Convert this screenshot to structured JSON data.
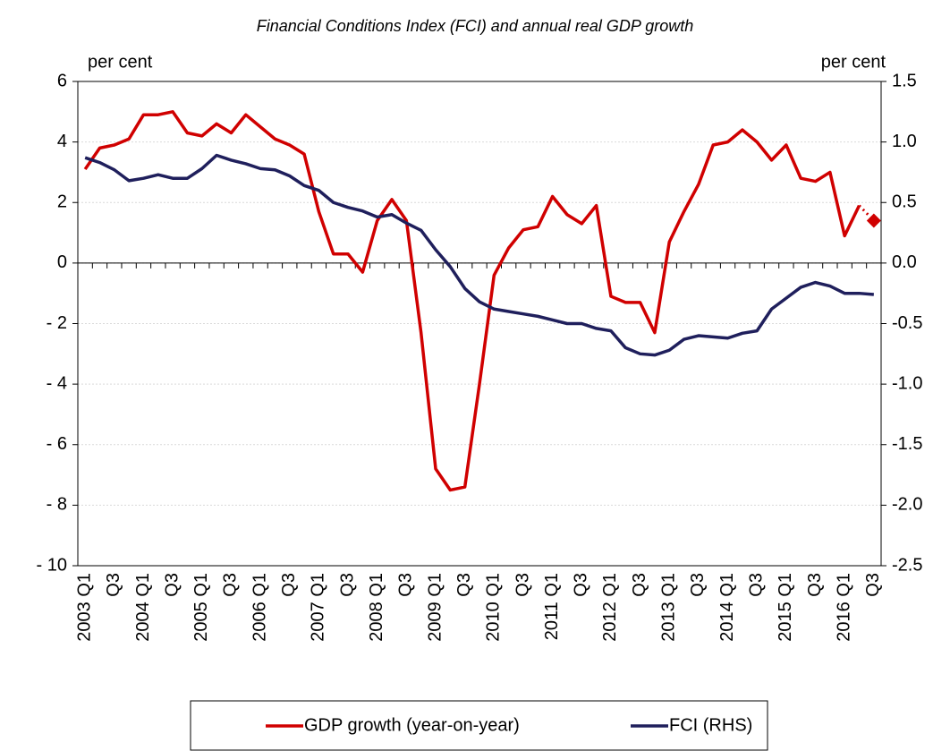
{
  "chart_data": {
    "type": "line",
    "title": "Financial Conditions Index (FCI) and annual real GDP growth",
    "y_label": "per cent",
    "y2_label": "per cent",
    "categories": [
      "2003 Q1",
      null,
      "Q3",
      null,
      "2004 Q1",
      null,
      "Q3",
      null,
      "2005 Q1",
      null,
      "Q3",
      null,
      "2006 Q1",
      null,
      "Q3",
      null,
      "2007 Q1",
      null,
      "Q3",
      null,
      "2008 Q1",
      null,
      "Q3",
      null,
      "2009 Q1",
      null,
      "Q3",
      null,
      "2010 Q1",
      null,
      "Q3",
      null,
      "2011 Q1",
      null,
      "Q3",
      null,
      "2012 Q1",
      null,
      "Q3",
      null,
      "2013 Q1",
      null,
      "Q3",
      null,
      "2014 Q1",
      null,
      "Q3",
      null,
      "2015 Q1",
      null,
      "Q3",
      null,
      "2016 Q1",
      null,
      "Q3"
    ],
    "series": [
      {
        "name": "GDP growth (year-on-year)",
        "color": "#d00000",
        "axis": "y",
        "values": [
          3.1,
          3.8,
          3.9,
          4.1,
          4.9,
          4.9,
          5.0,
          4.3,
          4.2,
          4.6,
          4.3,
          4.9,
          4.5,
          4.1,
          3.9,
          3.6,
          1.7,
          0.3,
          0.3,
          -0.3,
          1.4,
          2.1,
          1.4,
          -2.3,
          -6.8,
          -7.5,
          -7.4,
          -4.0,
          -0.4,
          0.5,
          1.1,
          1.2,
          2.2,
          1.6,
          1.3,
          1.9,
          -1.1,
          -1.3,
          -1.3,
          -2.3,
          0.7,
          1.7,
          2.6,
          3.9,
          4.0,
          4.4,
          4.0,
          3.4,
          3.9,
          2.8,
          2.7,
          3.0,
          0.9,
          1.9,
          null
        ],
        "forecast": [
          null,
          null,
          null,
          null,
          null,
          null,
          null,
          null,
          null,
          null,
          null,
          null,
          null,
          null,
          null,
          null,
          null,
          null,
          null,
          null,
          null,
          null,
          null,
          null,
          null,
          null,
          null,
          null,
          null,
          null,
          null,
          null,
          null,
          null,
          null,
          null,
          null,
          null,
          null,
          null,
          null,
          null,
          null,
          null,
          null,
          null,
          null,
          null,
          null,
          null,
          null,
          null,
          null,
          null,
          1.4
        ]
      },
      {
        "name": "FCI (RHS)",
        "color": "#1f1f5c",
        "axis": "y2",
        "values": [
          0.87,
          0.83,
          0.77,
          0.68,
          0.7,
          0.73,
          0.7,
          0.7,
          0.78,
          0.89,
          0.85,
          0.82,
          0.78,
          0.77,
          0.72,
          0.64,
          0.6,
          0.5,
          0.46,
          0.43,
          0.38,
          0.4,
          0.33,
          0.27,
          0.11,
          -0.03,
          -0.21,
          -0.32,
          -0.38,
          -0.4,
          -0.42,
          -0.44,
          -0.47,
          -0.5,
          -0.5,
          -0.54,
          -0.56,
          -0.7,
          -0.75,
          -0.76,
          -0.72,
          -0.63,
          -0.6,
          -0.61,
          -0.62,
          -0.58,
          -0.56,
          -0.38,
          -0.29,
          -0.2,
          -0.16,
          -0.19,
          -0.25,
          -0.25,
          -0.26
        ]
      }
    ],
    "ylim": [
      -10,
      6
    ],
    "yticks": [
      {
        "value": -10,
        "label": "- 10"
      },
      {
        "value": -8,
        "label": "- 8"
      },
      {
        "value": -6,
        "label": "- 6"
      },
      {
        "value": -4,
        "label": "- 4"
      },
      {
        "value": -2,
        "label": "- 2"
      },
      0,
      2,
      4,
      6
    ],
    "y2lim": [
      -2.5,
      1.5
    ],
    "y2ticks": [
      -2.5,
      {
        "value": -2,
        "label": "-2.0"
      },
      -1.5,
      {
        "value": -1,
        "label": "-1.0"
      },
      -0.5,
      {
        "value": 0,
        "label": "0.0"
      },
      0.5,
      {
        "value": 1,
        "label": "1.0"
      },
      1.5
    ],
    "grid": true,
    "legend": "bottom"
  }
}
